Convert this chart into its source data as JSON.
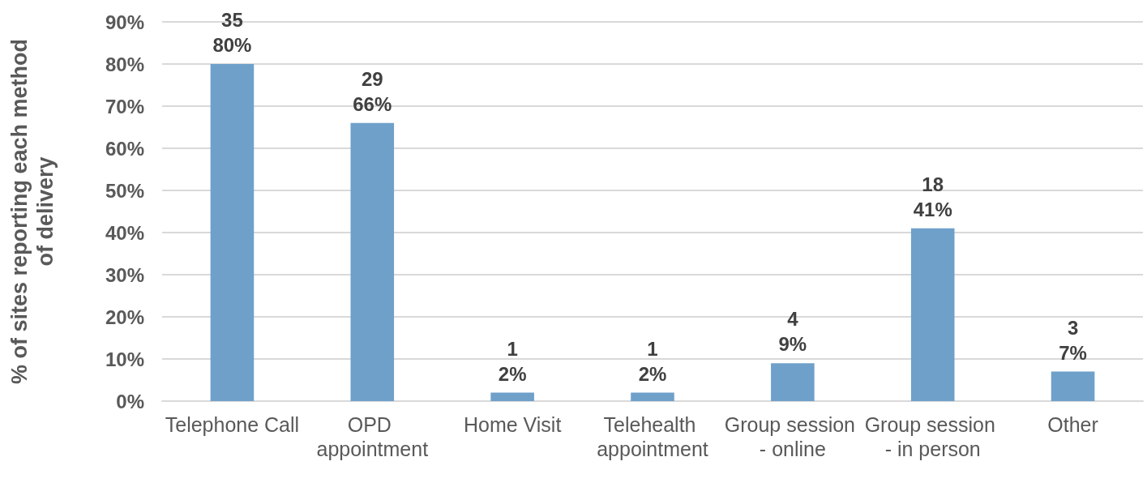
{
  "chart_data": {
    "type": "bar",
    "ylabel": "% of sites reporting each method of delivery",
    "categories": [
      "Telephone Call",
      "OPD appointment",
      "Home Visit",
      "Telehealth appointment",
      "Group session - online",
      "Group session - in person",
      "Other"
    ],
    "values": [
      80,
      66,
      2,
      2,
      9,
      41,
      7
    ],
    "value_labels": [
      "35\n80%",
      "29\n66%",
      "1\n2%",
      "1\n2%",
      "4\n9%",
      "18\n41%",
      "3\n7%"
    ],
    "color": "#6fa0ca",
    "ylim": [
      0,
      90
    ],
    "yticks": [
      {
        "value": 0,
        "label": "0%"
      },
      {
        "value": 10,
        "label": "10%"
      },
      {
        "value": 20,
        "label": "20%"
      },
      {
        "value": 30,
        "label": "30%"
      },
      {
        "value": 40,
        "label": "40%"
      },
      {
        "value": 50,
        "label": "50%"
      },
      {
        "value": 60,
        "label": "60%"
      },
      {
        "value": 70,
        "label": "70%"
      },
      {
        "value": 80,
        "label": "80%"
      },
      {
        "value": 90,
        "label": "90%"
      }
    ],
    "grid": "y"
  }
}
